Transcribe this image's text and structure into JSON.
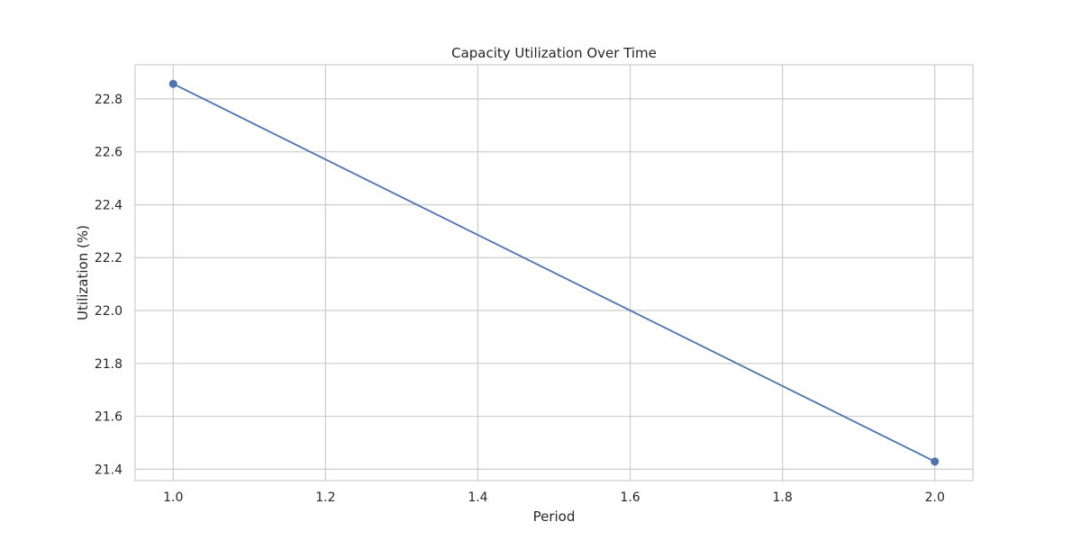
{
  "chart_data": {
    "type": "line",
    "title": "Capacity Utilization Over Time",
    "xlabel": "Period",
    "ylabel": "Utilization (%)",
    "x": [
      1.0,
      2.0
    ],
    "series": [
      {
        "values": [
          22.857,
          21.429
        ],
        "color": "#4c72b0",
        "marker": "circle"
      }
    ],
    "xlim": [
      0.95,
      2.05
    ],
    "ylim": [
      21.357,
      22.929
    ],
    "xticks": [
      1.0,
      1.2,
      1.4,
      1.6,
      1.8,
      2.0
    ],
    "xtick_labels": [
      "1.0",
      "1.2",
      "1.4",
      "1.6",
      "1.8",
      "2.0"
    ],
    "yticks": [
      21.4,
      21.6,
      21.8,
      22.0,
      22.2,
      22.4,
      22.6,
      22.8
    ],
    "ytick_labels": [
      "21.4",
      "21.6",
      "21.8",
      "22.0",
      "22.2",
      "22.4",
      "22.6",
      "22.8"
    ],
    "grid": true,
    "grid_color": "#cccccc",
    "frame_color": "#cccccc"
  }
}
